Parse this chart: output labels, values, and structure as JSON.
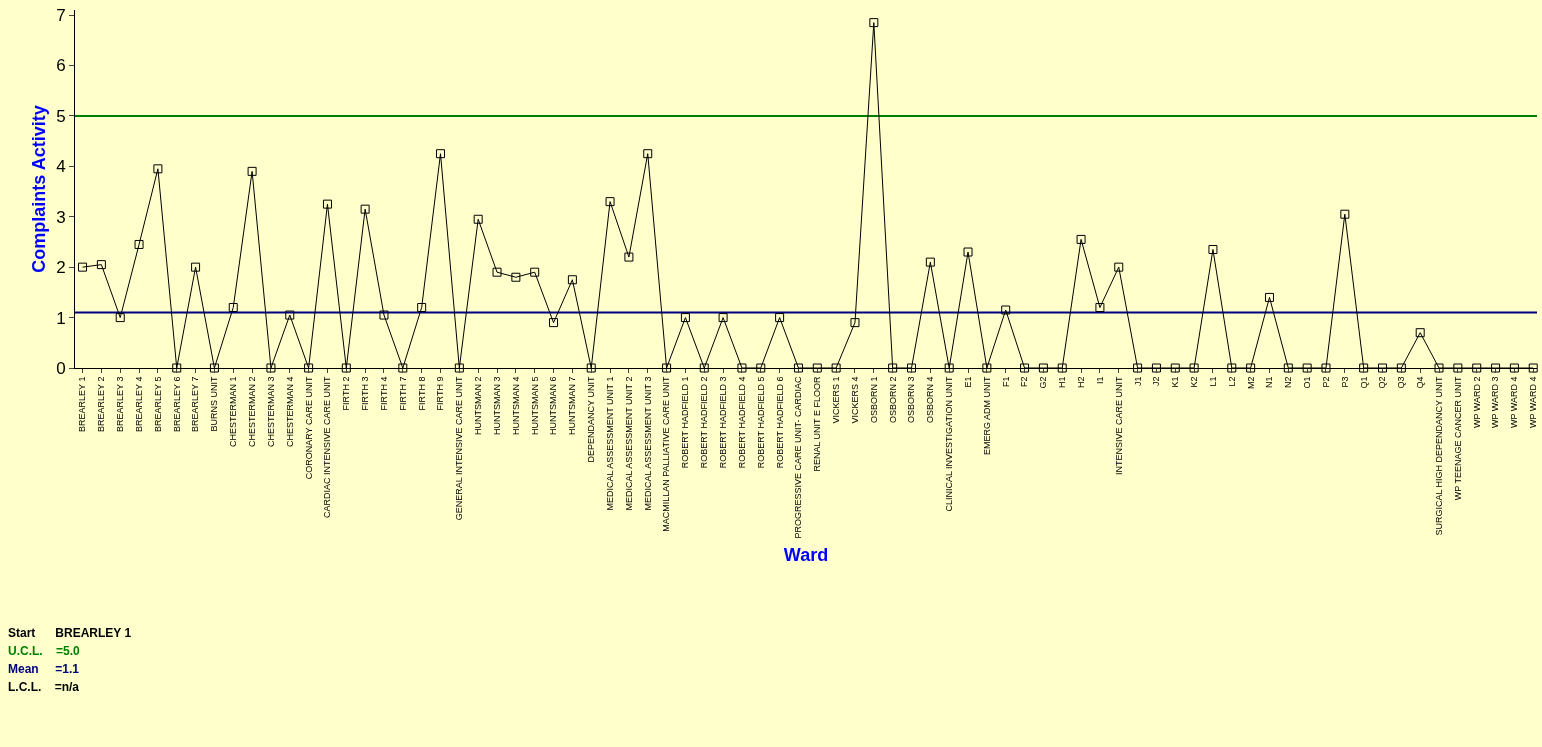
{
  "chart_data": {
    "type": "line",
    "xlabel": "Ward",
    "ylabel": "Complaints Activity",
    "categories": [
      "BREARLEY 1",
      "BREARLEY 2",
      "BREARLEY 3",
      "BREARLEY 4",
      "BREARLEY 5",
      "BREARLEY 6",
      "BREARLEY 7",
      "BURNS UNIT",
      "CHESTERMAN 1",
      "CHESTERMAN 2",
      "CHESTERMAN 3",
      "CHESTERMAN 4",
      "CORONARY CARE UNIT",
      "CARDIAC INTENSIVE CARE UNIT",
      "FIRTH 2",
      "FIRTH 3",
      "FIRTH 4",
      "FIRTH 7",
      "FIRTH 8",
      "FIRTH 9",
      "GENERAL INTENSIVE CARE UNIT",
      "HUNTSMAN 2",
      "HUNTSMAN 3",
      "HUNTSMAN 4",
      "HUNTSMAN 5",
      "HUNTSMAN 6",
      "HUNTSMAN 7",
      "DEPENDANCY UNIT",
      "MEDICAL ASSESSMENT UNIT 1",
      "MEDICAL ASSESSMENT UNIT 2",
      "MEDICAL ASSESSMENT UNIT 3",
      "MACMILLAN PALLIATIVE CARE UNIT",
      "ROBERT HADFIELD 1",
      "ROBERT HADFIELD 2",
      "ROBERT HADFIELD 3",
      "ROBERT HADFIELD 4",
      "ROBERT HADFIELD 5",
      "ROBERT HADFIELD 6",
      "PROGRESSIVE CARE UNIT- CARDIAC",
      "RENAL UNIT E FLOOR",
      "VICKERS 1",
      "VICKERS 4",
      "OSBORN 1",
      "OSBORN 2",
      "OSBORN 3",
      "OSBORN 4",
      "CLINICAL INVESTIGATION UNIT",
      "E1",
      "EMERG ADM UNIT",
      "F1",
      "F2",
      "G2",
      "H1",
      "H2",
      "I1",
      "INTENSIVE CARE UNIT",
      "J1",
      "J2",
      "K1",
      "K2",
      "L1",
      "L2",
      "M2",
      "N1",
      "N2",
      "O1",
      "P2",
      "P3",
      "Q1",
      "Q2",
      "Q3",
      "Q4",
      "SURGICAL HIGH DEPENDANCY UNIT",
      "WP TEENAGE CANCER UNIT",
      "WP WARD 2",
      "WP WARD 3",
      "WP WARD 4",
      "WP WARD 4"
    ],
    "series": [
      {
        "color": "#000000",
        "values": [
          2.0,
          2.05,
          1.0,
          2.45,
          3.95,
          0,
          2.0,
          0,
          1.2,
          3.9,
          0,
          1.05,
          0,
          3.25,
          0,
          3.15,
          1.05,
          0,
          1.2,
          4.25,
          0,
          2.95,
          1.9,
          1.8,
          1.9,
          0.9,
          1.75,
          0,
          3.3,
          2.2,
          4.25,
          0,
          1.0,
          0,
          1.0,
          0,
          0,
          1.0,
          0,
          0,
          0,
          0.9,
          6.85,
          0,
          0,
          2.1,
          0,
          2.3,
          0,
          1.15,
          0,
          0,
          0,
          2.55,
          1.2,
          2.0,
          0,
          0,
          0,
          0,
          2.35,
          0,
          0,
          1.4,
          0,
          0,
          0,
          3.05,
          0,
          0,
          0,
          0.7,
          0,
          0,
          0,
          0,
          0,
          0
        ]
      }
    ],
    "marker": "square",
    "ylim": [
      0,
      7.1
    ],
    "yticks": [
      0,
      1,
      2,
      3,
      4,
      5,
      6,
      7
    ],
    "ref_lines": [
      {
        "axis": "y",
        "value": 5.0,
        "label": "U.C.L.    =5.0",
        "color": "#008000"
      },
      {
        "axis": "y",
        "value": 1.1,
        "label": "Mean     =1.1",
        "color": "#000080"
      }
    ],
    "annotations": [
      "Start      BREARLEY 1",
      "L.C.L.    =n/a"
    ],
    "grid": false,
    "legend": false
  }
}
